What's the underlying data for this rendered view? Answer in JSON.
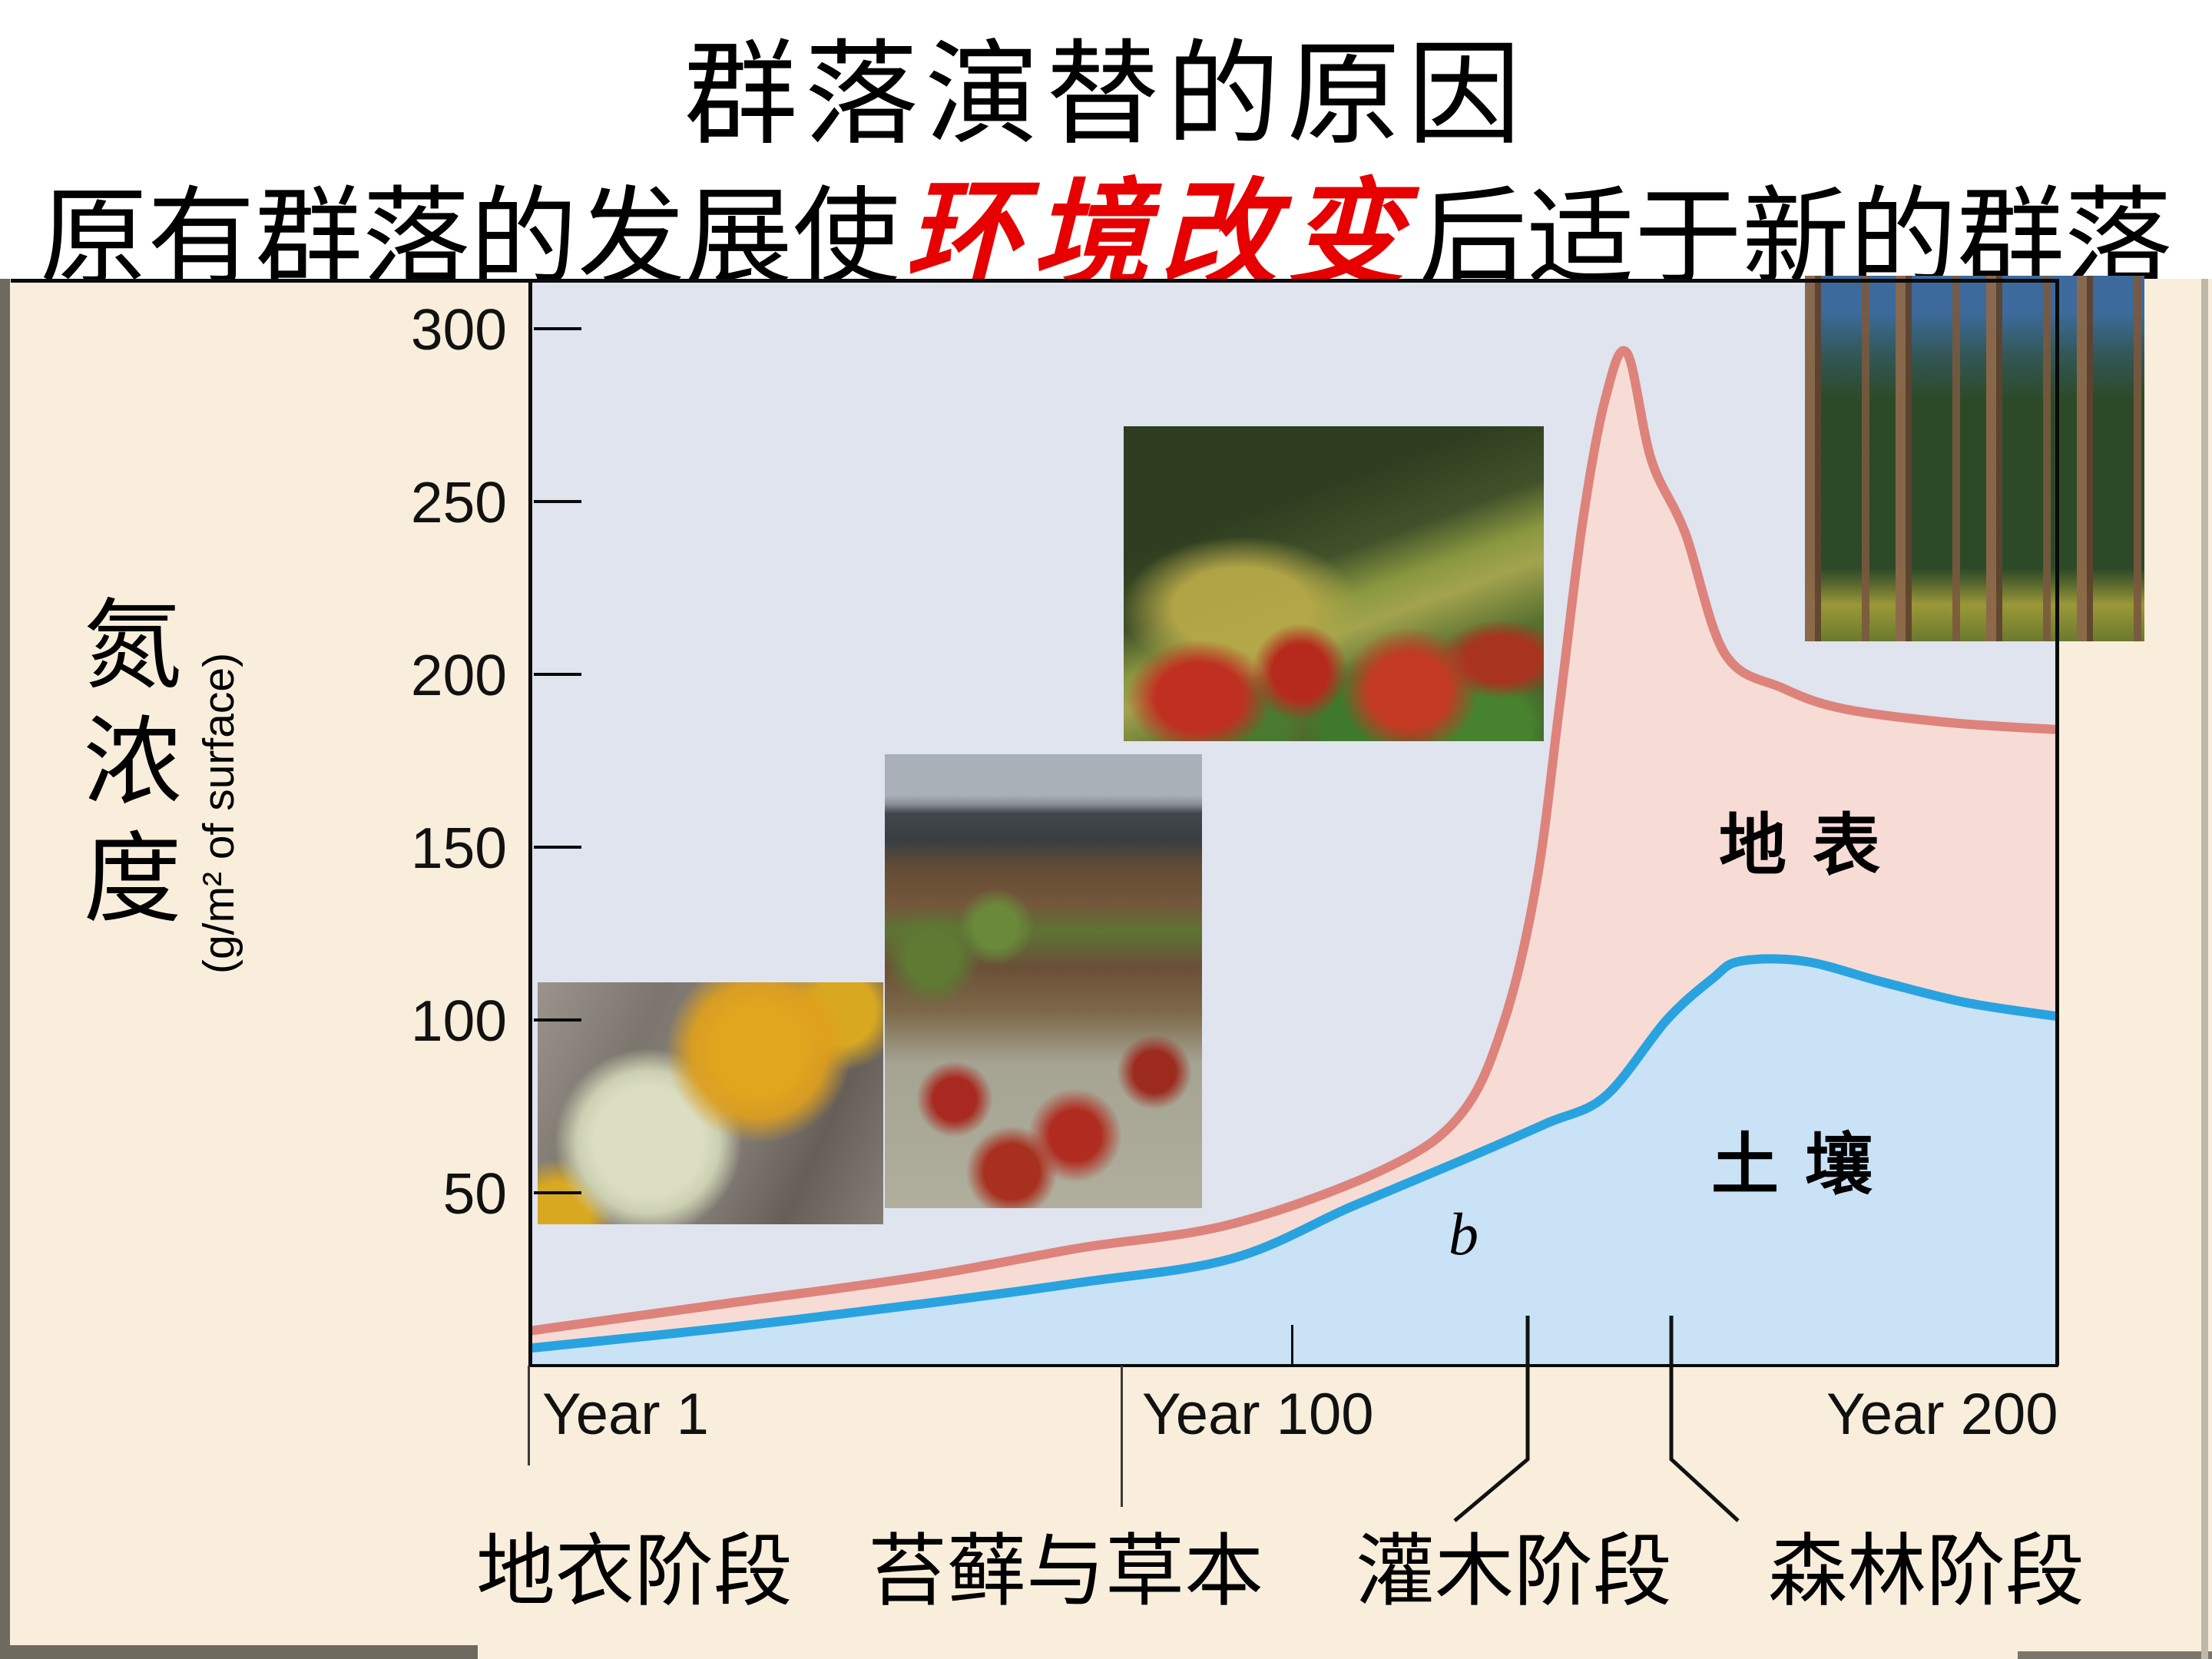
{
  "title": {
    "line1": "群落演替的原因",
    "line2_pre": "原有群落的发展使",
    "line2_highlight": "环境改变",
    "line2_post": "后适于新的群落"
  },
  "chart_data": {
    "type": "area",
    "title": "",
    "y_axis": {
      "label_cn": "氮浓度",
      "unit": "(g/m² of surface)",
      "ticks": [
        300,
        250,
        200,
        150,
        100,
        50
      ],
      "range": [
        0,
        314
      ]
    },
    "x_axis": {
      "labels": [
        "Year 1",
        "Year 100",
        "Year 200"
      ]
    },
    "annotation_b": "b",
    "stages": [
      "地衣阶段",
      "苔藓与草本",
      "灌木阶段",
      "森林阶段"
    ],
    "series": [
      {
        "name": "地表",
        "stroke": "#dd837b",
        "fill": "#f7dcd5",
        "points": [
          [
            0,
            10
          ],
          [
            0.13,
            18
          ],
          [
            0.26,
            26
          ],
          [
            0.36,
            34
          ],
          [
            0.46,
            41
          ],
          [
            0.56,
            57
          ],
          [
            0.61,
            73
          ],
          [
            0.638,
            100
          ],
          [
            0.659,
            140
          ],
          [
            0.674,
            191
          ],
          [
            0.689,
            244
          ],
          [
            0.704,
            280
          ],
          [
            0.718,
            293
          ],
          [
            0.734,
            262
          ],
          [
            0.756,
            241
          ],
          [
            0.782,
            206
          ],
          [
            0.82,
            196
          ],
          [
            0.86,
            190
          ],
          [
            0.93,
            186
          ],
          [
            1,
            184
          ]
        ]
      },
      {
        "name": "土壤",
        "stroke": "#29a3e0",
        "fill": "#c9e2f6",
        "points": [
          [
            0,
            5
          ],
          [
            0.13,
            11
          ],
          [
            0.26,
            18
          ],
          [
            0.36,
            24
          ],
          [
            0.46,
            31
          ],
          [
            0.538,
            46
          ],
          [
            0.608,
            59
          ],
          [
            0.665,
            70
          ],
          [
            0.704,
            78
          ],
          [
            0.744,
            100
          ],
          [
            0.774,
            112
          ],
          [
            0.792,
            117
          ],
          [
            0.834,
            117
          ],
          [
            0.885,
            111
          ],
          [
            0.94,
            105
          ],
          [
            1,
            101
          ]
        ]
      }
    ]
  },
  "photos": {
    "lichen": "lichen-stage-photo",
    "moss": "moss-herb-stage-photo",
    "shrub": "shrub-stage-photo",
    "forest": "forest-stage-photo"
  }
}
